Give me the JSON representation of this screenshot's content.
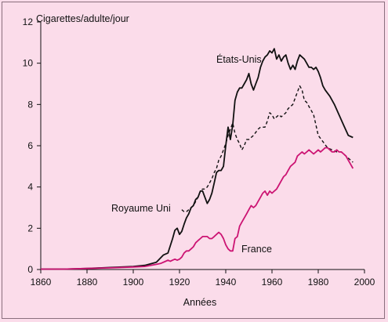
{
  "chart_data": {
    "type": "line",
    "ylabel": "Cigarettes/adulte/jour",
    "xlabel": "Années",
    "xlim": [
      1860,
      2000
    ],
    "ylim": [
      0,
      12
    ],
    "x_ticks": [
      1860,
      1880,
      1900,
      1920,
      1940,
      1960,
      1980,
      2000
    ],
    "y_ticks": [
      0,
      2,
      4,
      6,
      8,
      10,
      12
    ],
    "grid": false,
    "colors": {
      "usa": "#111111",
      "uk": "#111111",
      "france": "#cc1473",
      "background": "#fbdcea"
    },
    "series": [
      {
        "name": "États-Unis",
        "line_style": "solid",
        "points": [
          [
            1860,
            0.02
          ],
          [
            1870,
            0.02
          ],
          [
            1880,
            0.05
          ],
          [
            1890,
            0.1
          ],
          [
            1900,
            0.15
          ],
          [
            1905,
            0.2
          ],
          [
            1910,
            0.35
          ],
          [
            1913,
            0.7
          ],
          [
            1915,
            0.8
          ],
          [
            1917,
            1.5
          ],
          [
            1918,
            1.9
          ],
          [
            1919,
            2.0
          ],
          [
            1920,
            1.7
          ],
          [
            1921,
            1.85
          ],
          [
            1922,
            2.2
          ],
          [
            1923,
            2.5
          ],
          [
            1924,
            2.7
          ],
          [
            1925,
            3.0
          ],
          [
            1926,
            3.1
          ],
          [
            1927,
            3.4
          ],
          [
            1928,
            3.5
          ],
          [
            1929,
            3.8
          ],
          [
            1930,
            3.8
          ],
          [
            1931,
            3.5
          ],
          [
            1932,
            3.2
          ],
          [
            1933,
            3.4
          ],
          [
            1934,
            3.7
          ],
          [
            1935,
            4.2
          ],
          [
            1936,
            4.7
          ],
          [
            1937,
            4.8
          ],
          [
            1938,
            4.8
          ],
          [
            1939,
            5.0
          ],
          [
            1940,
            6.0
          ],
          [
            1941,
            6.9
          ],
          [
            1942,
            6.3
          ],
          [
            1943,
            7.0
          ],
          [
            1944,
            8.2
          ],
          [
            1945,
            8.6
          ],
          [
            1946,
            8.8
          ],
          [
            1947,
            8.8
          ],
          [
            1948,
            9.0
          ],
          [
            1949,
            9.2
          ],
          [
            1950,
            9.5
          ],
          [
            1951,
            9.0
          ],
          [
            1952,
            8.7
          ],
          [
            1953,
            9.0
          ],
          [
            1954,
            9.3
          ],
          [
            1955,
            9.8
          ],
          [
            1956,
            10.1
          ],
          [
            1957,
            10.3
          ],
          [
            1958,
            10.4
          ],
          [
            1959,
            10.6
          ],
          [
            1960,
            10.5
          ],
          [
            1961,
            10.7
          ],
          [
            1962,
            10.2
          ],
          [
            1963,
            10.4
          ],
          [
            1964,
            10.1
          ],
          [
            1965,
            10.3
          ],
          [
            1966,
            10.4
          ],
          [
            1967,
            10.0
          ],
          [
            1968,
            9.7
          ],
          [
            1969,
            9.9
          ],
          [
            1970,
            9.7
          ],
          [
            1971,
            10.1
          ],
          [
            1972,
            10.4
          ],
          [
            1973,
            10.3
          ],
          [
            1974,
            10.2
          ],
          [
            1975,
            10.0
          ],
          [
            1976,
            9.8
          ],
          [
            1977,
            9.8
          ],
          [
            1978,
            9.7
          ],
          [
            1979,
            9.8
          ],
          [
            1980,
            9.6
          ],
          [
            1981,
            9.3
          ],
          [
            1982,
            8.9
          ],
          [
            1983,
            8.7
          ],
          [
            1985,
            8.4
          ],
          [
            1987,
            8.0
          ],
          [
            1989,
            7.5
          ],
          [
            1991,
            7.0
          ],
          [
            1993,
            6.5
          ],
          [
            1995,
            6.4
          ]
        ]
      },
      {
        "name": "Royaume Uni",
        "line_style": "dashed",
        "points": [
          [
            1921,
            2.9
          ],
          [
            1922,
            2.8
          ],
          [
            1923,
            2.8
          ],
          [
            1924,
            2.9
          ],
          [
            1925,
            3.0
          ],
          [
            1926,
            3.1
          ],
          [
            1927,
            3.3
          ],
          [
            1928,
            3.5
          ],
          [
            1929,
            3.8
          ],
          [
            1930,
            3.9
          ],
          [
            1931,
            3.9
          ],
          [
            1932,
            4.0
          ],
          [
            1933,
            4.2
          ],
          [
            1934,
            4.4
          ],
          [
            1935,
            4.7
          ],
          [
            1936,
            4.9
          ],
          [
            1937,
            5.3
          ],
          [
            1938,
            5.5
          ],
          [
            1939,
            5.8
          ],
          [
            1940,
            6.1
          ],
          [
            1941,
            6.5
          ],
          [
            1942,
            6.8
          ],
          [
            1943,
            7.1
          ],
          [
            1944,
            6.6
          ],
          [
            1945,
            6.3
          ],
          [
            1946,
            6.1
          ],
          [
            1947,
            5.8
          ],
          [
            1948,
            6.0
          ],
          [
            1949,
            6.3
          ],
          [
            1950,
            6.3
          ],
          [
            1952,
            6.5
          ],
          [
            1954,
            6.8
          ],
          [
            1955,
            6.9
          ],
          [
            1957,
            6.9
          ],
          [
            1958,
            7.2
          ],
          [
            1959,
            7.6
          ],
          [
            1960,
            7.5
          ],
          [
            1961,
            7.3
          ],
          [
            1962,
            7.4
          ],
          [
            1963,
            7.5
          ],
          [
            1964,
            7.4
          ],
          [
            1965,
            7.5
          ],
          [
            1966,
            7.6
          ],
          [
            1967,
            7.8
          ],
          [
            1968,
            7.9
          ],
          [
            1969,
            8.0
          ],
          [
            1970,
            8.3
          ],
          [
            1971,
            8.6
          ],
          [
            1972,
            8.9
          ],
          [
            1973,
            8.7
          ],
          [
            1974,
            8.2
          ],
          [
            1975,
            8.1
          ],
          [
            1976,
            7.9
          ],
          [
            1977,
            7.7
          ],
          [
            1978,
            7.5
          ],
          [
            1979,
            7.0
          ],
          [
            1980,
            6.5
          ],
          [
            1982,
            6.2
          ],
          [
            1984,
            5.9
          ],
          [
            1986,
            5.8
          ],
          [
            1988,
            5.7
          ],
          [
            1990,
            5.7
          ],
          [
            1992,
            5.5
          ],
          [
            1994,
            5.3
          ],
          [
            1995,
            5.2
          ]
        ]
      },
      {
        "name": "France",
        "line_style": "solid",
        "points": [
          [
            1860,
            0.02
          ],
          [
            1870,
            0.02
          ],
          [
            1880,
            0.05
          ],
          [
            1890,
            0.08
          ],
          [
            1900,
            0.12
          ],
          [
            1905,
            0.15
          ],
          [
            1910,
            0.25
          ],
          [
            1912,
            0.3
          ],
          [
            1914,
            0.4
          ],
          [
            1915,
            0.45
          ],
          [
            1916,
            0.4
          ],
          [
            1917,
            0.45
          ],
          [
            1918,
            0.5
          ],
          [
            1919,
            0.45
          ],
          [
            1920,
            0.5
          ],
          [
            1921,
            0.6
          ],
          [
            1922,
            0.8
          ],
          [
            1923,
            0.9
          ],
          [
            1924,
            0.9
          ],
          [
            1925,
            1.0
          ],
          [
            1926,
            1.1
          ],
          [
            1927,
            1.3
          ],
          [
            1928,
            1.4
          ],
          [
            1929,
            1.5
          ],
          [
            1930,
            1.6
          ],
          [
            1931,
            1.6
          ],
          [
            1932,
            1.6
          ],
          [
            1933,
            1.5
          ],
          [
            1934,
            1.5
          ],
          [
            1935,
            1.6
          ],
          [
            1936,
            1.7
          ],
          [
            1937,
            1.8
          ],
          [
            1938,
            1.7
          ],
          [
            1939,
            1.5
          ],
          [
            1940,
            1.2
          ],
          [
            1941,
            1.0
          ],
          [
            1942,
            0.9
          ],
          [
            1943,
            0.9
          ],
          [
            1944,
            1.5
          ],
          [
            1945,
            1.6
          ],
          [
            1946,
            2.1
          ],
          [
            1947,
            2.3
          ],
          [
            1948,
            2.5
          ],
          [
            1949,
            2.7
          ],
          [
            1950,
            2.9
          ],
          [
            1951,
            3.1
          ],
          [
            1952,
            3.0
          ],
          [
            1953,
            3.1
          ],
          [
            1954,
            3.3
          ],
          [
            1955,
            3.5
          ],
          [
            1956,
            3.7
          ],
          [
            1957,
            3.8
          ],
          [
            1958,
            3.6
          ],
          [
            1959,
            3.8
          ],
          [
            1960,
            3.7
          ],
          [
            1961,
            3.8
          ],
          [
            1962,
            3.9
          ],
          [
            1963,
            4.1
          ],
          [
            1964,
            4.3
          ],
          [
            1965,
            4.5
          ],
          [
            1966,
            4.6
          ],
          [
            1967,
            4.8
          ],
          [
            1968,
            5.0
          ],
          [
            1969,
            5.1
          ],
          [
            1970,
            5.2
          ],
          [
            1971,
            5.5
          ],
          [
            1972,
            5.6
          ],
          [
            1973,
            5.7
          ],
          [
            1974,
            5.6
          ],
          [
            1975,
            5.7
          ],
          [
            1976,
            5.8
          ],
          [
            1977,
            5.7
          ],
          [
            1978,
            5.6
          ],
          [
            1979,
            5.7
          ],
          [
            1980,
            5.8
          ],
          [
            1981,
            5.7
          ],
          [
            1982,
            5.8
          ],
          [
            1983,
            5.9
          ],
          [
            1984,
            5.9
          ],
          [
            1985,
            5.8
          ],
          [
            1986,
            5.7
          ],
          [
            1987,
            5.7
          ],
          [
            1988,
            5.8
          ],
          [
            1989,
            5.7
          ],
          [
            1990,
            5.7
          ],
          [
            1991,
            5.6
          ],
          [
            1992,
            5.5
          ],
          [
            1993,
            5.3
          ],
          [
            1994,
            5.1
          ],
          [
            1995,
            4.9
          ]
        ]
      }
    ]
  }
}
